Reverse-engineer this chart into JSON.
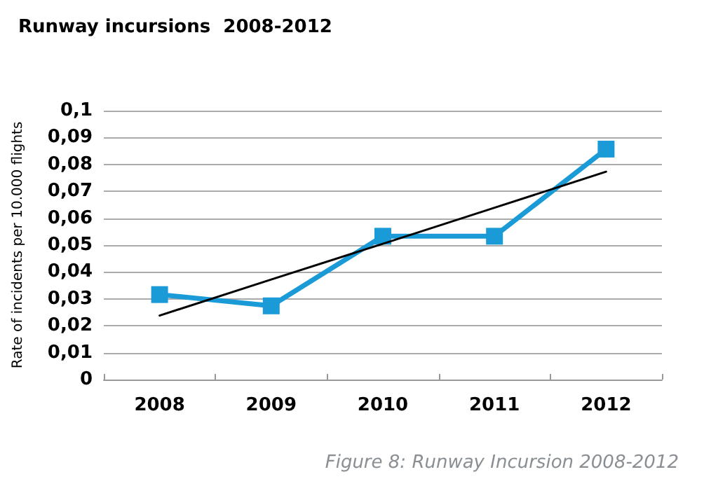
{
  "chart_data": {
    "type": "line",
    "title": "Runway incursions  2008-2012",
    "ylabel": "Rate of incidents per 10.000 flights",
    "annotations": [
      "Figure 8: Runway Incursion 2008-2012"
    ],
    "categories": [
      "2008",
      "2009",
      "2010",
      "2011",
      "2012"
    ],
    "series": [
      {
        "color": "#1a9ad6",
        "values": [
          0.0316,
          0.0274,
          0.0533,
          0.0533,
          0.0857
        ],
        "marker": "square"
      },
      {
        "color": "#000000",
        "values": [
          0.0238,
          0.0372,
          0.0505,
          0.0639,
          0.0773
        ],
        "marker": "none"
      }
    ],
    "ylim": [
      0,
      0.1
    ],
    "yticks": [
      0,
      {
        "value": 0.01,
        "label": "0,01"
      },
      {
        "value": 0.02,
        "label": "0,02"
      },
      {
        "value": 0.03,
        "label": "0,03"
      },
      {
        "value": 0.04,
        "label": "0,04"
      },
      {
        "value": 0.05,
        "label": "0,05"
      },
      {
        "value": 0.06,
        "label": "0,06"
      },
      {
        "value": 0.07,
        "label": "0,07"
      },
      {
        "value": 0.08,
        "label": "0,08"
      },
      {
        "value": 0.09,
        "label": "0,09"
      },
      {
        "value": 0.1,
        "label": "0,1"
      }
    ],
    "grid": "y"
  }
}
